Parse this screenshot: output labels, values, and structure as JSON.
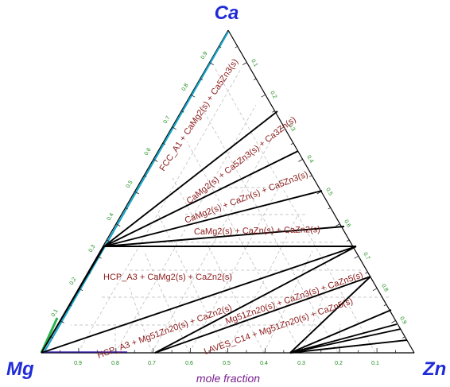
{
  "corners": {
    "top": "Ca",
    "left": "Mg",
    "right": "Zn"
  },
  "axis_label": "mole fraction",
  "ticks": {
    "bottom": [
      "0.9",
      "0.8",
      "0.7",
      "0.6",
      "0.5",
      "0.4",
      "0.3",
      "0.2",
      "0.1"
    ],
    "left": [
      "0.1",
      "0.2",
      "0.3",
      "0.4",
      "0.5",
      "0.6",
      "0.7",
      "0.8",
      "0.9"
    ],
    "right": [
      "0.1",
      "0.2",
      "0.3",
      "0.4",
      "0.5",
      "0.6",
      "0.7",
      "0.8",
      "0.9"
    ]
  },
  "regions": [
    "FCC_A1 + CaMg2(s) + Ca5Zn3(s)",
    "CaMg2(s) + Ca5Zn3(s) + Ca3Zn(s)",
    "CaMg2(s) + CaZn(s) + Ca5Zn3(s)",
    "CaMg2(s) + CaZn(s) + CaZn2(s)",
    "HCP_A3 + CaMg2(s) + CaZn2(s)",
    "HCP_A3 + Mg51Zn20(s) + CaZn2(s)",
    "Mg51Zn20(s) + CaZn3(s) + CaZn5(s)",
    "LAVES_C14 + Mg51Zn20(s) + CaZn5(s)"
  ],
  "colors": {
    "corner_label": "#1f2bd6",
    "tick_label": "#1a8a1a",
    "axis_label": "#7a1f8f",
    "region_label": "#8b1a1a",
    "phase_boundary": "#000000",
    "grid": "#b8b8b8"
  }
}
